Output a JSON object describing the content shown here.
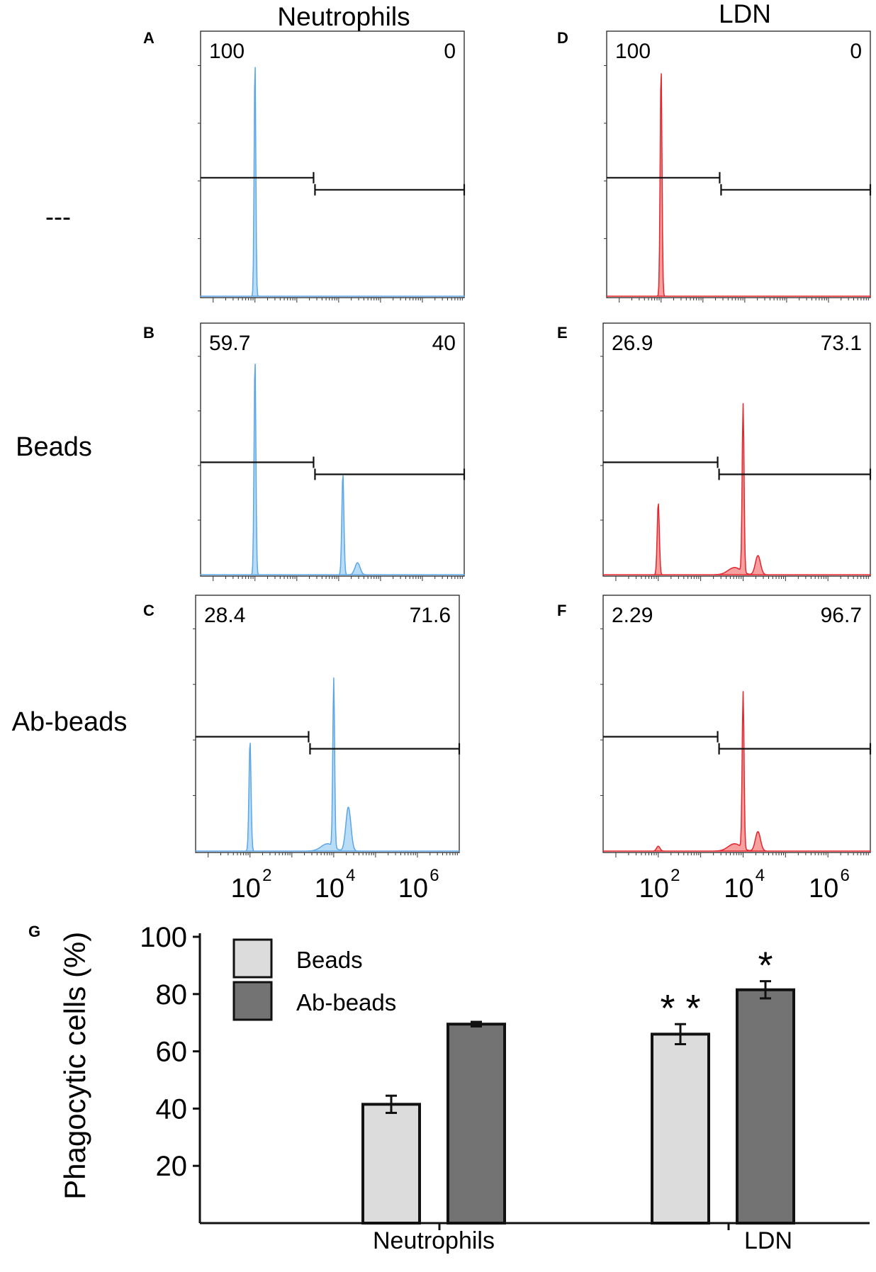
{
  "colors": {
    "neutrophil_line": "#5aa6e8",
    "neutrophil_fill": "#b9dcf7",
    "ldn_line": "#e8242a",
    "ldn_fill": "#f6a0a0",
    "beads_bar": "#dcdcdc",
    "abbeads_bar": "#737373",
    "gate": "#111111"
  },
  "columns": {
    "neutrophils": "Neutrophils",
    "ldn": "LDN"
  },
  "rows": {
    "control": "---",
    "beads": "Beads",
    "abbeads": "Ab-beads"
  },
  "x_ticks": [
    {
      "base": "10",
      "exp": "2"
    },
    {
      "base": "10",
      "exp": "4"
    },
    {
      "base": "10",
      "exp": "6"
    }
  ],
  "chart_data": [
    {
      "type": "area",
      "panel": "A",
      "column": "Neutrophils",
      "row": "---",
      "x_scale": "log",
      "xlim_log10": [
        0.7,
        7.0
      ],
      "gate_left_percent": "100",
      "gate_right_percent": "0",
      "gate_split_log10": 3.4,
      "peaks": [
        {
          "center_log10": 2.0,
          "height": 0.93,
          "width": 0.02
        }
      ]
    },
    {
      "type": "area",
      "panel": "B",
      "column": "Neutrophils",
      "row": "Beads",
      "x_scale": "log",
      "xlim_log10": [
        0.7,
        7.0
      ],
      "gate_left_percent": "59.7",
      "gate_right_percent": "40",
      "gate_split_log10": 3.4,
      "peaks": [
        {
          "center_log10": 2.0,
          "height": 0.9,
          "width": 0.022
        },
        {
          "center_log10": 4.1,
          "height": 0.42,
          "width": 0.025
        },
        {
          "center_log10": 4.45,
          "height": 0.05,
          "width": 0.06
        }
      ]
    },
    {
      "type": "area",
      "panel": "C",
      "column": "Neutrophils",
      "row": "Ab-beads",
      "x_scale": "log",
      "xlim_log10": [
        0.7,
        7.0
      ],
      "gate_left_percent": "28.4",
      "gate_right_percent": "71.6",
      "gate_split_log10": 3.4,
      "peaks": [
        {
          "center_log10": 2.0,
          "height": 0.45,
          "width": 0.025
        },
        {
          "center_log10": 4.0,
          "height": 0.69,
          "width": 0.022
        },
        {
          "center_log10": 4.35,
          "height": 0.18,
          "width": 0.06
        },
        {
          "center_log10": 3.85,
          "height": 0.03,
          "width": 0.15
        }
      ]
    },
    {
      "type": "area",
      "panel": "D",
      "column": "LDN",
      "row": "---",
      "x_scale": "log",
      "xlim_log10": [
        0.7,
        7.0
      ],
      "gate_left_percent": "100",
      "gate_right_percent": "0",
      "gate_split_log10": 3.4,
      "peaks": [
        {
          "center_log10": 2.0,
          "height": 0.9,
          "width": 0.022
        }
      ]
    },
    {
      "type": "area",
      "panel": "E",
      "column": "LDN",
      "row": "Beads",
      "x_scale": "log",
      "xlim_log10": [
        0.7,
        7.0
      ],
      "gate_left_percent": "26.9",
      "gate_right_percent": "73.1",
      "gate_split_log10": 3.4,
      "peaks": [
        {
          "center_log10": 2.0,
          "height": 0.3,
          "width": 0.025
        },
        {
          "center_log10": 4.0,
          "height": 0.7,
          "width": 0.022
        },
        {
          "center_log10": 4.35,
          "height": 0.08,
          "width": 0.06
        },
        {
          "center_log10": 3.8,
          "height": 0.03,
          "width": 0.15
        }
      ]
    },
    {
      "type": "area",
      "panel": "F",
      "column": "LDN",
      "row": "Ab-beads",
      "x_scale": "log",
      "xlim_log10": [
        0.7,
        7.0
      ],
      "gate_left_percent": "2.29",
      "gate_right_percent": "96.7",
      "gate_split_log10": 3.4,
      "peaks": [
        {
          "center_log10": 2.0,
          "height": 0.02,
          "width": 0.04
        },
        {
          "center_log10": 4.0,
          "height": 0.64,
          "width": 0.022
        },
        {
          "center_log10": 4.35,
          "height": 0.08,
          "width": 0.06
        },
        {
          "center_log10": 3.8,
          "height": 0.03,
          "width": 0.15
        }
      ]
    },
    {
      "type": "bar",
      "panel": "G",
      "ylabel": "Phagocytic cells (%)",
      "ylim": [
        0,
        100
      ],
      "yticks": [
        20,
        40,
        60,
        80,
        100
      ],
      "categories": [
        "Neutrophils",
        "LDN"
      ],
      "series": [
        {
          "name": "Beads",
          "values": [
            41.5,
            66
          ],
          "errors": [
            3,
            3.5
          ]
        },
        {
          "name": "Ab-beads",
          "values": [
            69.5,
            81.5
          ],
          "errors": [
            0.8,
            3
          ]
        }
      ],
      "significance": [
        {
          "category": "LDN",
          "series": "Beads",
          "label": "* *"
        },
        {
          "category": "LDN",
          "series": "Ab-beads",
          "label": "*"
        }
      ]
    }
  ]
}
